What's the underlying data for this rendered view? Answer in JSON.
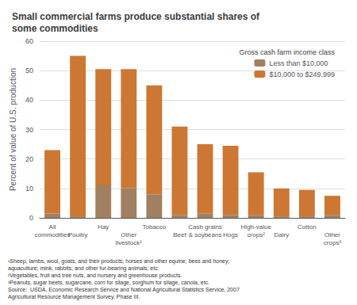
{
  "chart_data": {
    "type": "bar",
    "title": "Small commercial farms produce substantial shares of\nsome commodities",
    "ylabel": "Percent of value of U.S. production",
    "categories": [
      "All\ncommodities",
      "Poultry",
      "Hay",
      "Other\nlivestock¹",
      "Tobacco",
      "Beef",
      "Cash grains\n& soybeans",
      "Hogs",
      "High-value\ncrops²",
      "Dairy",
      "Cotton",
      "Other\ncrops³"
    ],
    "series": [
      {
        "name": "Less than $10,000",
        "color": "#a08060",
        "values": [
          1.5,
          0.5,
          11.0,
          10.0,
          8.0,
          1.0,
          1.5,
          1.0,
          1.0,
          0.5,
          0.5,
          1.0
        ]
      },
      {
        "name": "$10,000 to $249,999",
        "color": "#cc7733",
        "values": [
          21.5,
          54.5,
          39.5,
          40.5,
          37.0,
          30.0,
          23.5,
          23.5,
          14.5,
          9.5,
          9.0,
          6.5
        ]
      }
    ],
    "stacked": true,
    "ylim": [
      0,
      60
    ],
    "yticks": [
      0,
      10,
      20,
      30,
      40,
      50,
      60
    ],
    "grid": true,
    "legend": "upper right",
    "legend_title": "Gross cash farm income class",
    "footnotes": "¹Sheep, lambs, wool, goats, and their products; horses and other equine; bees and honey;\naquaculture; mink, rabbits, and other fur-bearing animals; etc.\n²Vegetables, fruit and tree nuts, and nursery and greenhouse products.\n³Peanuts, sugar beets, sugarcane, corn for silage, sorghum for silage, canola, etc.\nSource:  USDA, Economic Research Service and National Agricultural Statistics Service, 2007\nAgricultural Resource Management Survey, Phase III."
  }
}
